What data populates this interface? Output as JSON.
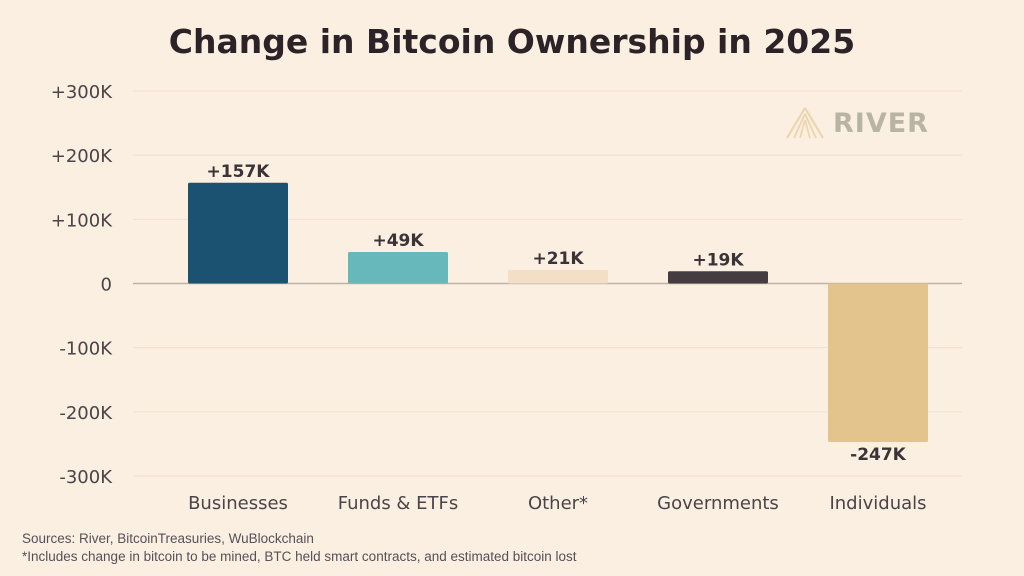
{
  "brand": {
    "name": "RIVER"
  },
  "sources": "Sources: River, BitcoinTreasuries, WuBlockchain",
  "note": "*Includes change in bitcoin to be mined, BTC held smart contracts, and estimated bitcoin lost",
  "chart_data": {
    "type": "bar",
    "title": "Change in Bitcoin Ownership in 2025",
    "xlabel": "",
    "ylabel": "",
    "categories": [
      "Businesses",
      "Funds & ETFs",
      "Other*",
      "Governments",
      "Individuals"
    ],
    "values": [
      157,
      49,
      21,
      19,
      -247
    ],
    "data_labels": [
      "+157K",
      "+49K",
      "+21K",
      "+19K",
      "-247K"
    ],
    "colors": [
      "#1b5171",
      "#66b8bb",
      "#f2dfc6",
      "#453c42",
      "#e3c48d"
    ],
    "ylim": [
      -300,
      300
    ],
    "yticks": [
      300,
      200,
      100,
      0,
      -100,
      -200,
      -300
    ],
    "ytick_labels": [
      "+300K",
      "+200K",
      "+100K",
      "0",
      "-100K",
      "-200K",
      "-300K"
    ],
    "grid": true,
    "unit": "thousand BTC"
  }
}
